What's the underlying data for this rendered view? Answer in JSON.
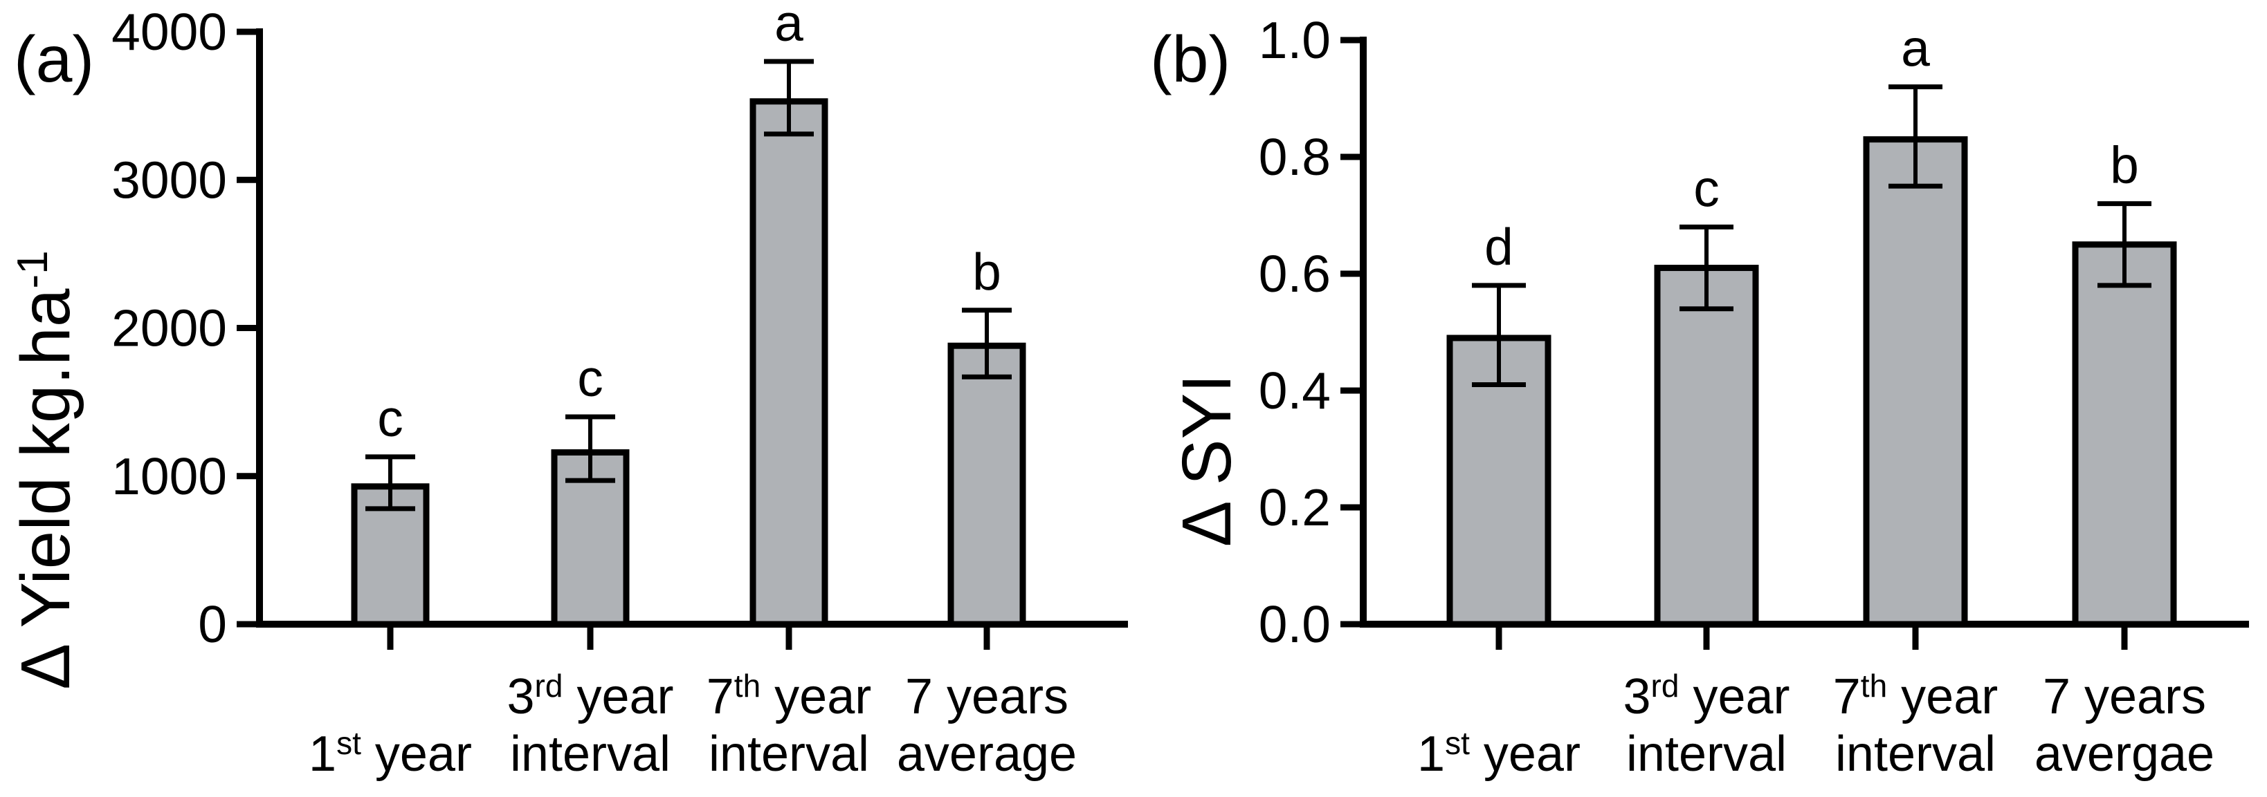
{
  "figure": {
    "background": "#ffffff",
    "text_color": "#000000",
    "axis_color": "#000000"
  },
  "chart_data": [
    {
      "type": "bar",
      "panel_label": "(a)",
      "ylabel": "Δ Yield kg.ha^{-1}",
      "xlabel": "",
      "ylim": [
        0,
        4000
      ],
      "ytick_labels": [
        "0",
        "1000",
        "2000",
        "3000",
        "4000"
      ],
      "grid": false,
      "legend": null,
      "bar_fill": "#afb2b6",
      "bar_stroke": "#000000",
      "categories": [
        "1^{st} year",
        "3^{rd} year\ninterval",
        "7^{th} year\ninterval",
        "7 years\naverage"
      ],
      "values": [
        930,
        1160,
        3530,
        1880
      ],
      "error_low": [
        780,
        970,
        3310,
        1670
      ],
      "error_high": [
        1130,
        1400,
        3800,
        2120
      ],
      "sig_letters": [
        "c",
        "c",
        "a",
        "b"
      ]
    },
    {
      "type": "bar",
      "panel_label": "(b)",
      "ylabel": "Δ SYI",
      "xlabel": "",
      "ylim": [
        0,
        1.0
      ],
      "ytick_labels": [
        "0.0",
        "0.2",
        "0.4",
        "0.6",
        "0.8",
        "1.0"
      ],
      "grid": false,
      "legend": null,
      "bar_fill": "#afb2b6",
      "bar_stroke": "#000000",
      "categories": [
        "1^{st} year",
        "3^{rd} year\ninterval",
        "7^{th} year\ninterval",
        "7 years\navergae"
      ],
      "values": [
        0.49,
        0.61,
        0.83,
        0.65
      ],
      "error_low": [
        0.41,
        0.54,
        0.75,
        0.58
      ],
      "error_high": [
        0.58,
        0.68,
        0.92,
        0.72
      ],
      "sig_letters": [
        "d",
        "c",
        "a",
        "b"
      ]
    }
  ]
}
